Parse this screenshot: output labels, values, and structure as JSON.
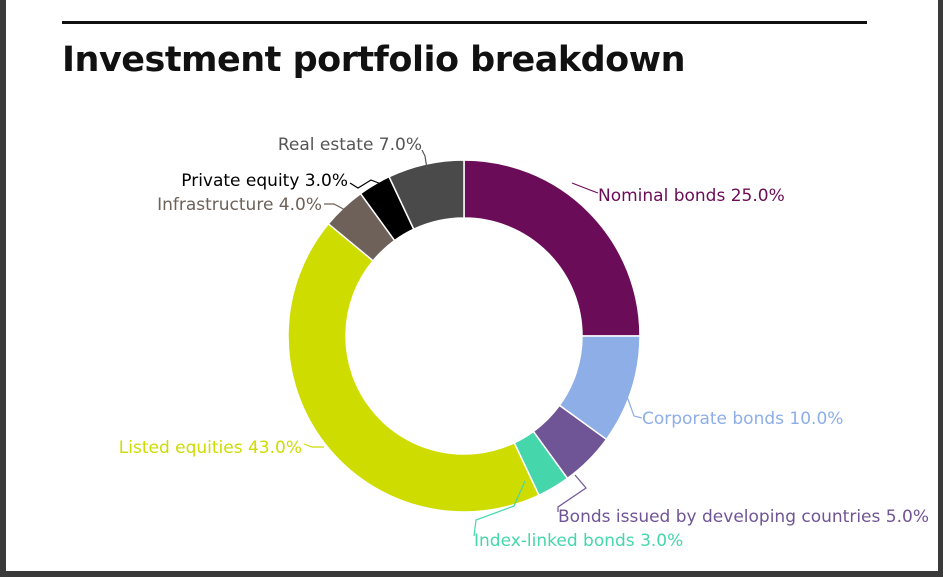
{
  "page": {
    "title": "Investment portfolio breakdown"
  },
  "chart_data": {
    "type": "pie",
    "variant": "donut",
    "title": "Investment portfolio breakdown",
    "start_angle_deg": 0,
    "direction": "clockwise",
    "slices": [
      {
        "label": "Nominal bonds 25.0%",
        "category": "Nominal bonds",
        "value": 25.0,
        "color": "#6b0c58"
      },
      {
        "label": "Corporate bonds 10.0%",
        "category": "Corporate bonds",
        "value": 10.0,
        "color": "#8daee6"
      },
      {
        "label": "Bonds issued by developing countries 5.0%",
        "category": "Bonds issued by developing countries",
        "value": 5.0,
        "color": "#6f5496"
      },
      {
        "label": "Index-linked bonds 3.0%",
        "category": "Index-linked bonds",
        "value": 3.0,
        "color": "#45d6ac"
      },
      {
        "label": "Listed equities 43.0%",
        "category": "Listed equities",
        "value": 43.0,
        "color": "#cfdc00"
      },
      {
        "label": "Infrastructure 4.0%",
        "category": "Infrastructure",
        "value": 4.0,
        "color": "#6e6159"
      },
      {
        "label": "Private equity 3.0%",
        "category": "Private equity",
        "value": 3.0,
        "color": "#000000"
      },
      {
        "label": "Real estate 7.0%",
        "category": "Real estate",
        "value": 7.0,
        "color": "#4a4a4a"
      }
    ]
  }
}
